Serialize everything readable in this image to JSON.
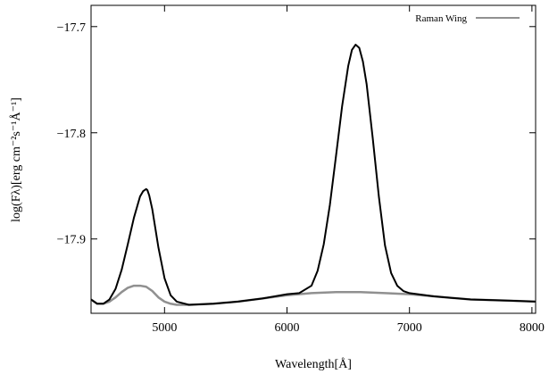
{
  "chart_data": {
    "type": "line",
    "xlabel": "Wavelength[Å]",
    "ylabel": "log(Fλ)[erg cm⁻²s⁻¹Å⁻¹]",
    "xlim": [
      4400,
      8030
    ],
    "ylim": [
      -17.97,
      -17.68
    ],
    "xticks": [
      5000,
      6000,
      7000,
      8000
    ],
    "yticks": [
      -17.9,
      -17.8,
      -17.7
    ],
    "xtick_labels": [
      "5000",
      "6000",
      "7000",
      "8000"
    ],
    "ytick_labels": [
      "−17.9",
      "−17.8",
      "−17.7"
    ],
    "grid": false,
    "legend_position": "top-right",
    "series": [
      {
        "name": "",
        "color": "#000000",
        "x": [
          4400,
          4450,
          4500,
          4550,
          4600,
          4650,
          4700,
          4750,
          4800,
          4825,
          4850,
          4860,
          4875,
          4900,
          4925,
          4950,
          5000,
          5050,
          5100,
          5200,
          5400,
          5600,
          5800,
          6000,
          6100,
          6200,
          6250,
          6300,
          6350,
          6400,
          6450,
          6500,
          6530,
          6560,
          6590,
          6620,
          6650,
          6700,
          6750,
          6800,
          6850,
          6900,
          6950,
          7000,
          7200,
          7500,
          7800,
          8030
        ],
        "y": [
          -17.957,
          -17.961,
          -17.961,
          -17.957,
          -17.947,
          -17.929,
          -17.905,
          -17.88,
          -17.86,
          -17.855,
          -17.853,
          -17.854,
          -17.859,
          -17.872,
          -17.89,
          -17.908,
          -17.937,
          -17.953,
          -17.959,
          -17.962,
          -17.961,
          -17.959,
          -17.956,
          -17.952,
          -17.951,
          -17.944,
          -17.93,
          -17.905,
          -17.868,
          -17.822,
          -17.775,
          -17.737,
          -17.722,
          -17.717,
          -17.72,
          -17.733,
          -17.754,
          -17.805,
          -17.86,
          -17.906,
          -17.932,
          -17.944,
          -17.949,
          -17.951,
          -17.954,
          -17.957,
          -17.958,
          -17.959
        ]
      },
      {
        "name": "Raman Wing",
        "color": "#909090",
        "x": [
          4400,
          4450,
          4500,
          4550,
          4600,
          4650,
          4700,
          4750,
          4800,
          4850,
          4900,
          4950,
          5000,
          5050,
          5100,
          5200,
          5400,
          5600,
          5800,
          6000,
          6200,
          6400,
          6600,
          6800,
          7000,
          7200,
          7500,
          7800,
          8030
        ],
        "y": [
          -17.957,
          -17.961,
          -17.961,
          -17.959,
          -17.955,
          -17.95,
          -17.946,
          -17.944,
          -17.944,
          -17.945,
          -17.949,
          -17.955,
          -17.959,
          -17.961,
          -17.962,
          -17.962,
          -17.961,
          -17.959,
          -17.956,
          -17.953,
          -17.951,
          -17.95,
          -17.95,
          -17.951,
          -17.952,
          -17.954,
          -17.957,
          -17.958,
          -17.959
        ]
      }
    ]
  }
}
